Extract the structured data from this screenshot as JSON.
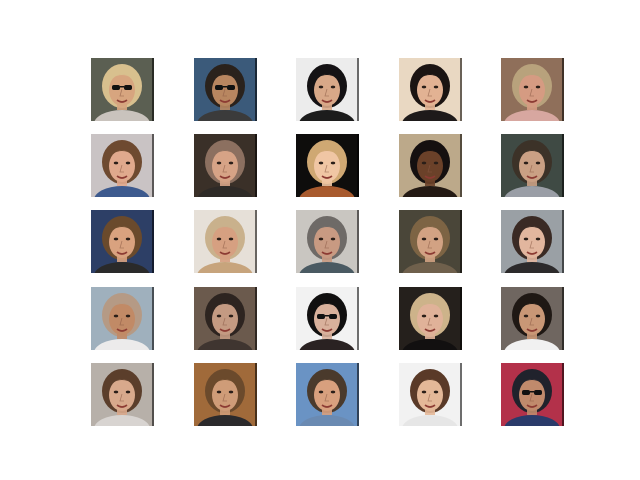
{
  "figure": {
    "background": "#ffffff",
    "rows": 5,
    "cols": 5,
    "samples": [
      {
        "bg": "#5b5f52",
        "skin": "#d7a57f",
        "hair": "#d8c08e",
        "shirt": "#c9c3bd",
        "glasses": true
      },
      {
        "bg": "#3b5a7a",
        "skin": "#b88660",
        "hair": "#2a221c",
        "shirt": "#3b3b3b",
        "glasses": true
      },
      {
        "bg": "#ececec",
        "skin": "#d8a888",
        "hair": "#141214",
        "shirt": "#1c1c1c",
        "glasses": false
      },
      {
        "bg": "#e9d8c2",
        "skin": "#e2b293",
        "hair": "#1b1412",
        "shirt": "#1e1a1a",
        "glasses": false
      },
      {
        "bg": "#8f6f5a",
        "skin": "#d59b82",
        "hair": "#b8a27c",
        "shirt": "#d7a7a0",
        "glasses": false
      },
      {
        "bg": "#c9c3c4",
        "skin": "#e0a98d",
        "hair": "#6e4a30",
        "shirt": "#3d5a8e",
        "glasses": false
      },
      {
        "bg": "#3a3028",
        "skin": "#d6a386",
        "hair": "#8c7060",
        "shirt": "#2e2a27",
        "glasses": false
      },
      {
        "bg": "#0e0d0c",
        "skin": "#f0c6a4",
        "hair": "#cfa873",
        "shirt": "#a85a2e",
        "glasses": false
      },
      {
        "bg": "#bca98a",
        "skin": "#6b4129",
        "hair": "#151010",
        "shirt": "#241a14",
        "glasses": false
      },
      {
        "bg": "#3f4a44",
        "skin": "#caa084",
        "hair": "#3c3228",
        "shirt": "#9a9ea6",
        "glasses": false
      },
      {
        "bg": "#2d3f66",
        "skin": "#d9a27f",
        "hair": "#6a4a2c",
        "shirt": "#2a2a2a",
        "glasses": false
      },
      {
        "bg": "#e6e0d8",
        "skin": "#d6a081",
        "hair": "#c9b18c",
        "shirt": "#c7a47c",
        "glasses": false
      },
      {
        "bg": "#c9c6c1",
        "skin": "#c89a82",
        "hair": "#6e6a67",
        "shirt": "#4a5a62",
        "glasses": false
      },
      {
        "bg": "#4a4639",
        "skin": "#d2a283",
        "hair": "#7d6444",
        "shirt": "#6f604c",
        "glasses": false
      },
      {
        "bg": "#9aa0a5",
        "skin": "#e2b69e",
        "hair": "#3a2a24",
        "shirt": "#2c2a2b",
        "glasses": false
      },
      {
        "bg": "#9fb0bd",
        "skin": "#c18a66",
        "hair": "#b59a85",
        "shirt": "#ecebeb",
        "glasses": false
      },
      {
        "bg": "#6b5a4d",
        "skin": "#c49a82",
        "hair": "#2d2420",
        "shirt": "#3f3530",
        "glasses": false
      },
      {
        "bg": "#f2f2f2",
        "skin": "#d9b19c",
        "hair": "#111010",
        "shirt": "#2a2222",
        "glasses": true
      },
      {
        "bg": "#25201c",
        "skin": "#e0b299",
        "hair": "#cdb38a",
        "shirt": "#121010",
        "glasses": false
      },
      {
        "bg": "#6f6660",
        "skin": "#c99776",
        "hair": "#1f1814",
        "shirt": "#f1f1f1",
        "glasses": false
      },
      {
        "bg": "#b7b0a9",
        "skin": "#d8a98c",
        "hair": "#5b3e2b",
        "shirt": "#d8d4d1",
        "glasses": false
      },
      {
        "bg": "#a06a3a",
        "skin": "#cf9c78",
        "hair": "#6b4a2c",
        "shirt": "#2b2a2c",
        "glasses": false
      },
      {
        "bg": "#6a93c4",
        "skin": "#d8a07e",
        "hair": "#4a3a2c",
        "shirt": "#6a8ab2",
        "glasses": false
      },
      {
        "bg": "#f2f2f2",
        "skin": "#e4b898",
        "hair": "#5a3a28",
        "shirt": "#e6e6e6",
        "glasses": false
      },
      {
        "bg": "#b3314a",
        "skin": "#c08a6c",
        "hair": "#20222c",
        "shirt": "#2a3b6a",
        "glasses": true
      }
    ]
  }
}
